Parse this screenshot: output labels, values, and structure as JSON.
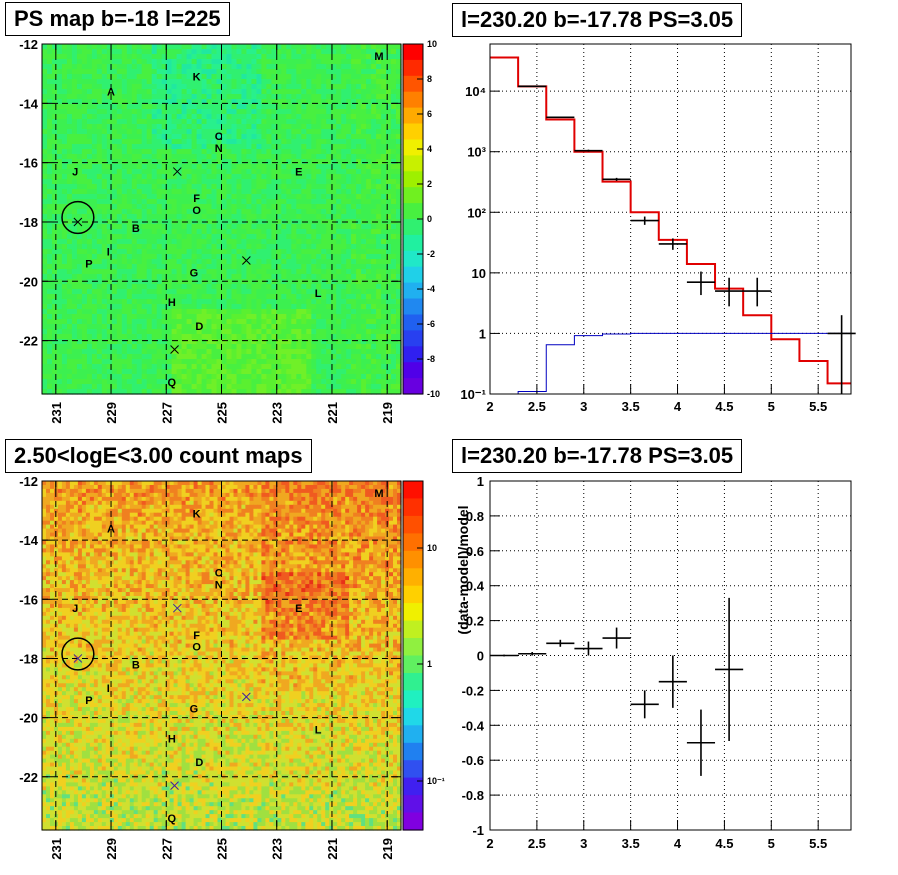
{
  "panels": {
    "map_top": {
      "title": "PS map b=-18 l=225",
      "x_ticks": [
        "231",
        "229",
        "227",
        "225",
        "223",
        "221",
        "219"
      ],
      "y_ticks": [
        "-12",
        "-14",
        "-16",
        "-18",
        "-20",
        "-22"
      ],
      "colorbar_ticks": [
        "10",
        "8",
        "6",
        "4",
        "2",
        "0",
        "-2",
        "-4",
        "-6",
        "-8",
        "-10"
      ],
      "source_labels": [
        "M",
        "K",
        "A",
        "C",
        "N",
        "J",
        "E",
        "F",
        "O",
        "B",
        "I",
        "P",
        "G",
        "H",
        "L",
        "D",
        "Q"
      ]
    },
    "map_bottom": {
      "title": "2.50<logE<3.00 count maps",
      "x_ticks": [
        "231",
        "229",
        "227",
        "225",
        "223",
        "221",
        "219"
      ],
      "y_ticks": [
        "-12",
        "-14",
        "-16",
        "-18",
        "-20",
        "-22"
      ],
      "colorbar_ticks": [
        "10",
        "1",
        "10⁻¹"
      ],
      "source_labels": [
        "M",
        "K",
        "A",
        "C",
        "N",
        "J",
        "E",
        "F",
        "O",
        "B",
        "I",
        "P",
        "G",
        "H",
        "L",
        "D",
        "Q"
      ]
    },
    "spectrum": {
      "title": "l=230.20 b=-17.78 PS=3.05"
    },
    "residual": {
      "title": "l=230.20 b=-17.78 PS=3.05"
    }
  },
  "chart_data": [
    {
      "type": "heatmap",
      "title": "PS map b=-18 l=225",
      "x_axis": {
        "ticks": [
          231,
          229,
          227,
          225,
          223,
          221,
          219
        ],
        "range": [
          231.5,
          218.5
        ],
        "reversed": true
      },
      "y_axis": {
        "ticks": [
          -12,
          -14,
          -16,
          -18,
          -20,
          -22
        ],
        "range": [
          -23.8,
          -12
        ]
      },
      "z_range": [
        -10,
        10
      ],
      "grid": true,
      "sources": [
        {
          "label": "M",
          "l": 219.3,
          "b": -12.4
        },
        {
          "label": "K",
          "l": 225.9,
          "b": -13.1
        },
        {
          "label": "A",
          "l": 229.0,
          "b": -13.6
        },
        {
          "label": "C",
          "l": 225.1,
          "b": -15.1
        },
        {
          "label": "N",
          "l": 225.1,
          "b": -15.5
        },
        {
          "label": "J",
          "l": 230.3,
          "b": -16.3
        },
        {
          "label": "E",
          "l": 222.2,
          "b": -16.3
        },
        {
          "label": "F",
          "l": 225.9,
          "b": -17.2
        },
        {
          "label": "O",
          "l": 225.9,
          "b": -17.6
        },
        {
          "label": "B",
          "l": 228.1,
          "b": -18.2
        },
        {
          "label": "I",
          "l": 229.1,
          "b": -19.0
        },
        {
          "label": "P",
          "l": 229.8,
          "b": -19.4
        },
        {
          "label": "G",
          "l": 226.0,
          "b": -19.7
        },
        {
          "label": "H",
          "l": 226.8,
          "b": -20.7
        },
        {
          "label": "L",
          "l": 221.5,
          "b": -20.4
        },
        {
          "label": "D",
          "l": 225.8,
          "b": -21.5
        },
        {
          "label": "Q",
          "l": 226.8,
          "b": -23.4
        }
      ],
      "crosses": [
        {
          "l": 226.6,
          "b": -16.3
        },
        {
          "l": 224.1,
          "b": -19.3
        },
        {
          "l": 226.7,
          "b": -22.3
        },
        {
          "l": 230.2,
          "b": -18.0
        }
      ],
      "circle": {
        "l": 230.2,
        "b": -17.85,
        "r_deg": 0.5
      }
    },
    {
      "type": "heatmap",
      "title": "2.50<logE<3.00 count maps",
      "x_axis": {
        "ticks": [
          231,
          229,
          227,
          225,
          223,
          221,
          219
        ],
        "range": [
          231.5,
          218.5
        ],
        "reversed": true
      },
      "y_axis": {
        "ticks": [
          -12,
          -14,
          -16,
          -18,
          -20,
          -22
        ],
        "range": [
          -23.8,
          -12
        ]
      },
      "z_scale": "log",
      "z_range": [
        0.04,
        50
      ],
      "grid": true
    },
    {
      "type": "line",
      "title": "l=230.20 b=-17.78 PS=3.05",
      "x_range": [
        2.0,
        5.85
      ],
      "y_range": [
        0.1,
        60000
      ],
      "y_scale": "log",
      "x_ticks": [
        2,
        2.5,
        3,
        3.5,
        4,
        4.5,
        5,
        5.5
      ],
      "y_ticks": [
        {
          "v": 0.1,
          "label": "10⁻¹"
        },
        {
          "v": 1,
          "label": "1"
        },
        {
          "v": 10,
          "label": "10"
        },
        {
          "v": 100,
          "label": "10²"
        },
        {
          "v": 1000,
          "label": "10³"
        },
        {
          "v": 10000,
          "label": "10⁴"
        }
      ],
      "grid": true,
      "series": [
        {
          "color": "#e00000",
          "style": "histogram",
          "bin_edges": [
            2.0,
            2.3,
            2.6,
            2.9,
            3.2,
            3.5,
            3.8,
            4.1,
            4.4,
            4.7,
            5.0,
            5.3,
            5.6,
            5.85
          ],
          "values": [
            36000,
            12000,
            3400,
            1000,
            320,
            100,
            35,
            14,
            5.5,
            2.0,
            0.8,
            0.35,
            0.15
          ]
        },
        {
          "color": "#0000c0",
          "style": "histogram",
          "bin_edges": [
            2.0,
            2.3,
            2.6,
            2.9,
            3.2,
            3.5,
            3.8,
            4.1,
            4.4,
            4.7,
            5.0,
            5.3,
            5.6,
            5.85
          ],
          "values": [
            0.06,
            0.11,
            0.65,
            0.92,
            0.98,
            1.0,
            1.0,
            1.0,
            1.0,
            1.0,
            1.0,
            1.0,
            1.0
          ]
        },
        {
          "color": "#000000",
          "style": "points",
          "points": [
            {
              "x": 2.45,
              "y": 12000,
              "xerr": 0.15,
              "ylo": 11800,
              "yhi": 12200
            },
            {
              "x": 2.75,
              "y": 3700,
              "xerr": 0.15,
              "ylo": 3600,
              "yhi": 3800
            },
            {
              "x": 3.05,
              "y": 1040,
              "xerr": 0.15,
              "ylo": 1000,
              "yhi": 1080
            },
            {
              "x": 3.35,
              "y": 350,
              "xerr": 0.15,
              "ylo": 330,
              "yhi": 370
            },
            {
              "x": 3.65,
              "y": 73,
              "xerr": 0.15,
              "ylo": 62,
              "yhi": 85
            },
            {
              "x": 3.95,
              "y": 30,
              "xerr": 0.15,
              "ylo": 24,
              "yhi": 37
            },
            {
              "x": 4.25,
              "y": 7,
              "xerr": 0.15,
              "ylo": 4.3,
              "yhi": 10.5
            },
            {
              "x": 4.55,
              "y": 5,
              "xerr": 0.15,
              "ylo": 2.8,
              "yhi": 8.3
            },
            {
              "x": 4.85,
              "y": 5,
              "xerr": 0.15,
              "ylo": 2.8,
              "yhi": 8.3
            },
            {
              "x": 5.75,
              "y": 1,
              "xerr": 0.15,
              "ylo": 0.1,
              "yhi": 2.0
            }
          ]
        }
      ]
    },
    {
      "type": "scatter",
      "title": "l=230.20 b=-17.78 PS=3.05",
      "ylabel": "(data-model)/model",
      "x_range": [
        2.0,
        5.85
      ],
      "y_range": [
        -1,
        1
      ],
      "x_ticks": [
        2,
        2.5,
        3,
        3.5,
        4,
        4.5,
        5,
        5.5
      ],
      "y_ticks": [
        -1,
        -0.8,
        -0.6,
        -0.4,
        -0.2,
        0,
        0.2,
        0.4,
        0.6,
        0.8,
        1
      ],
      "grid": true,
      "points": [
        {
          "x": 2.15,
          "y": 0.0,
          "xerr": 0.15,
          "yerr": 0.005
        },
        {
          "x": 2.45,
          "y": 0.01,
          "xerr": 0.15,
          "yerr": 0.01
        },
        {
          "x": 2.75,
          "y": 0.07,
          "xerr": 0.15,
          "yerr": 0.02
        },
        {
          "x": 3.05,
          "y": 0.04,
          "xerr": 0.15,
          "yerr": 0.04
        },
        {
          "x": 3.35,
          "y": 0.1,
          "xerr": 0.15,
          "yerr": 0.06
        },
        {
          "x": 3.65,
          "y": -0.28,
          "xerr": 0.15,
          "yerr": 0.08
        },
        {
          "x": 3.95,
          "y": -0.15,
          "xerr": 0.15,
          "yerr": 0.15
        },
        {
          "x": 4.25,
          "y": -0.5,
          "xerr": 0.15,
          "yerr": 0.19
        },
        {
          "x": 4.55,
          "y": -0.08,
          "xerr": 0.15,
          "yerr": 0.41
        }
      ]
    }
  ]
}
